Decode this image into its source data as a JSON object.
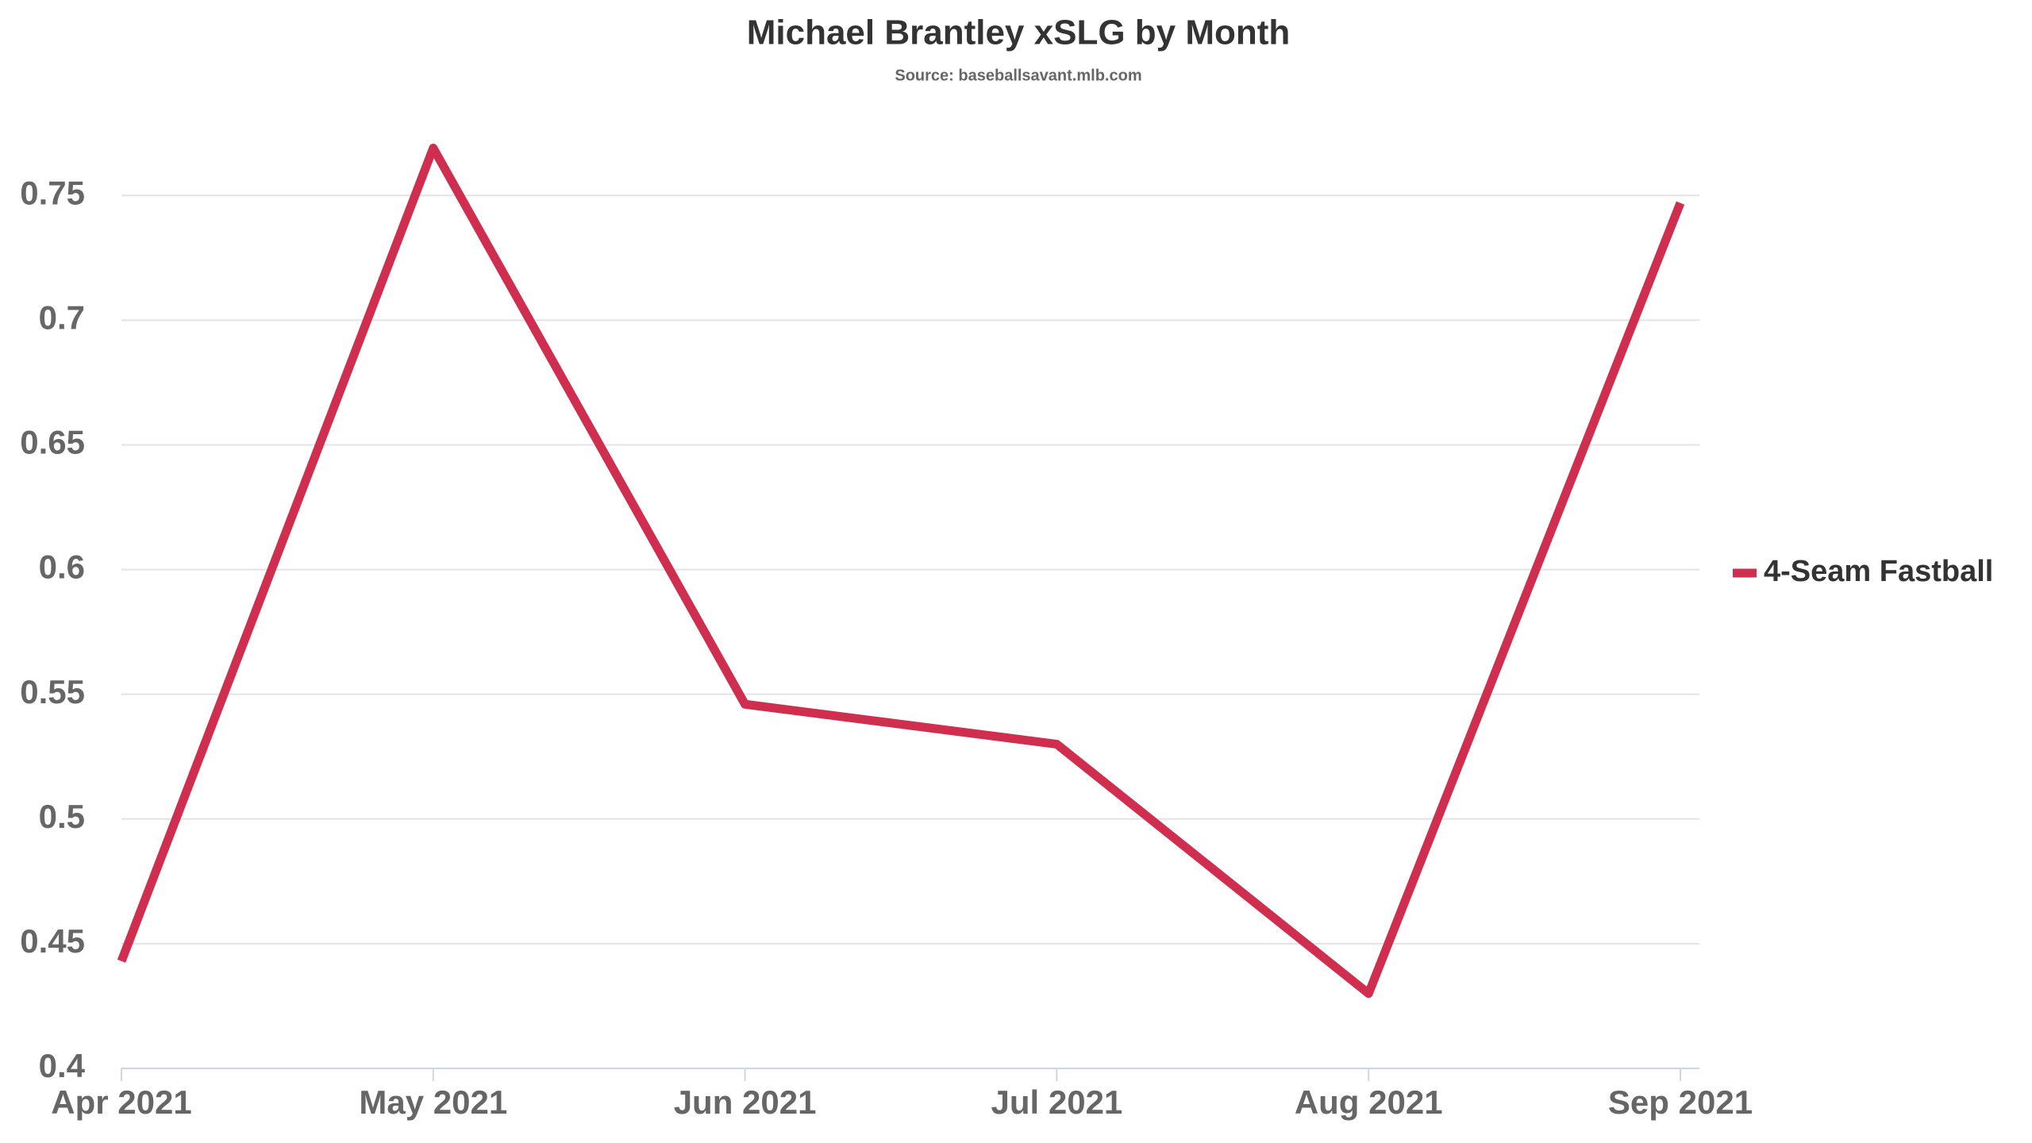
{
  "chart_data": {
    "type": "line",
    "title": "Michael Brantley xSLG by Month",
    "subtitle": "Source: baseballsavant.mlb.com",
    "categories": [
      "Apr 2021",
      "May 2021",
      "Jun 2021",
      "Jul 2021",
      "Aug 2021",
      "Sep 2021"
    ],
    "series": [
      {
        "name": "4-Seam Fastball",
        "color": "#cf2e4f",
        "values": [
          0.443,
          0.769,
          0.546,
          0.53,
          0.43,
          0.747
        ]
      }
    ],
    "ylim": [
      0.4,
      0.78
    ],
    "yticks": [
      0.4,
      0.45,
      0.5,
      0.55,
      0.6,
      0.65,
      0.7,
      0.75
    ],
    "grid": true,
    "legend": "right"
  }
}
